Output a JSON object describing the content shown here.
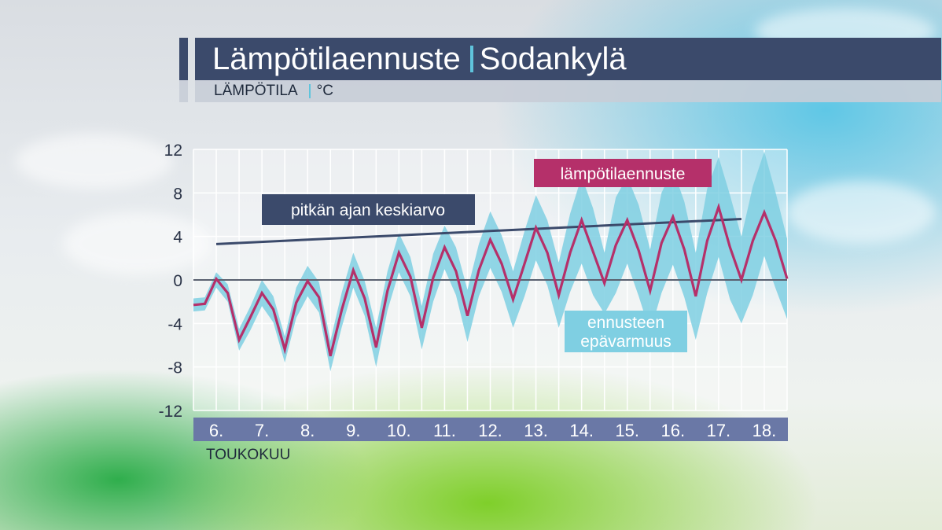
{
  "header": {
    "title": "Lämpötilaennuste",
    "location": "Sodankylä",
    "subtitle": "LÄMPÖTILA",
    "unit": "°C"
  },
  "colors": {
    "header_bg": "#3b4a6b",
    "accent": "#5fc4dc",
    "forecast": "#b5306a",
    "uncertainty": "#7fcfe2",
    "average": "#3b4a6b",
    "axis_bar": "#6a78a6"
  },
  "chart_data": {
    "type": "line",
    "ylim": [
      -12,
      12
    ],
    "yticks": [
      12,
      8,
      4,
      0,
      -4,
      -8,
      -12
    ],
    "x_tick_labels": [
      "6.",
      "7.",
      "8.",
      "9.",
      "10.",
      "11.",
      "12.",
      "13.",
      "14.",
      "15.",
      "16.",
      "17.",
      "18."
    ],
    "xlabel": "TOUKOKUU",
    "xlim": [
      5.0,
      18.0
    ],
    "grid": true,
    "annotations": {
      "forecast_label": "lämpötilaennuste",
      "average_label": "pitkän ajan keskiarvo",
      "uncertainty_label_1": "ennusteen",
      "uncertainty_label_2": "epävarmuus"
    },
    "series": [
      {
        "role": "forecast",
        "x": [
          5.0,
          5.25,
          5.5,
          5.75,
          6.0,
          6.25,
          6.5,
          6.75,
          7.0,
          7.25,
          7.5,
          7.75,
          8.0,
          8.25,
          8.5,
          8.75,
          9.0,
          9.25,
          9.5,
          9.75,
          10.0,
          10.25,
          10.5,
          10.75,
          11.0,
          11.25,
          11.5,
          11.75,
          12.0,
          12.25,
          12.5,
          12.75,
          13.0,
          13.25,
          13.5,
          13.75,
          14.0,
          14.25,
          14.5,
          14.75,
          15.0,
          15.25,
          15.5,
          15.75,
          16.0,
          16.25,
          16.5,
          16.75,
          17.0,
          17.25,
          17.5,
          17.75,
          18.0
        ],
        "y": [
          -2.3,
          -2.2,
          0.1,
          -1.2,
          -5.5,
          -3.4,
          -1.2,
          -2.7,
          -6.4,
          -2.1,
          -0.1,
          -1.6,
          -7.0,
          -2.7,
          0.9,
          -1.7,
          -6.2,
          -1.0,
          2.5,
          0.3,
          -4.4,
          0.2,
          3.0,
          0.8,
          -3.3,
          0.9,
          3.7,
          1.5,
          -1.8,
          1.5,
          4.8,
          2.5,
          -1.4,
          2.5,
          5.5,
          2.6,
          -0.3,
          3.2,
          5.5,
          2.7,
          -1.0,
          3.4,
          5.8,
          2.8,
          -1.5,
          3.6,
          6.7,
          3.0,
          0.0,
          3.6,
          6.2,
          3.6,
          0.1
        ]
      },
      {
        "role": "uncertainty",
        "x": [
          5.0,
          5.25,
          5.5,
          5.75,
          6.0,
          6.25,
          6.5,
          6.75,
          7.0,
          7.25,
          7.5,
          7.75,
          8.0,
          8.25,
          8.5,
          8.75,
          9.0,
          9.25,
          9.5,
          9.75,
          10.0,
          10.25,
          10.5,
          10.75,
          11.0,
          11.25,
          11.5,
          11.75,
          12.0,
          12.25,
          12.5,
          12.75,
          13.0,
          13.25,
          13.5,
          13.75,
          14.0,
          14.25,
          14.5,
          14.75,
          15.0,
          15.25,
          15.5,
          15.75,
          16.0,
          16.25,
          16.5,
          16.75,
          17.0,
          17.25,
          17.5,
          17.75,
          18.0
        ],
        "upper": [
          -1.7,
          -1.6,
          0.7,
          -0.4,
          -4.5,
          -2.4,
          0.0,
          -1.5,
          -5.2,
          -0.7,
          1.3,
          -0.2,
          -5.6,
          -1.1,
          2.5,
          -0.1,
          -4.4,
          0.8,
          4.3,
          2.1,
          -2.4,
          2.4,
          5.0,
          3.0,
          -0.9,
          3.3,
          6.3,
          4.1,
          0.8,
          4.5,
          7.8,
          5.5,
          1.6,
          6.1,
          9.5,
          6.6,
          2.5,
          7.6,
          9.5,
          6.9,
          2.8,
          8.0,
          10.2,
          7.2,
          2.5,
          8.4,
          11.3,
          7.8,
          4.0,
          8.6,
          11.8,
          8.0,
          3.8
        ],
        "lower": [
          -2.9,
          -2.8,
          -0.7,
          -2.0,
          -6.5,
          -4.6,
          -2.4,
          -3.9,
          -7.6,
          -3.5,
          -1.5,
          -3.0,
          -8.4,
          -4.3,
          -0.7,
          -3.3,
          -8.0,
          -2.8,
          0.7,
          -1.5,
          -6.4,
          -2.0,
          1.0,
          -1.4,
          -5.7,
          -1.5,
          1.1,
          -1.1,
          -4.4,
          -1.5,
          1.8,
          -0.5,
          -4.4,
          -1.1,
          1.5,
          -1.4,
          -3.1,
          -1.2,
          1.5,
          -1.5,
          -4.8,
          -1.2,
          1.4,
          -1.6,
          -5.5,
          -1.2,
          2.1,
          -1.8,
          -4.0,
          -1.4,
          2.2,
          -0.8,
          -3.6
        ]
      },
      {
        "role": "average",
        "x": [
          5.5,
          17.0
        ],
        "y": [
          3.3,
          5.6
        ]
      }
    ]
  }
}
